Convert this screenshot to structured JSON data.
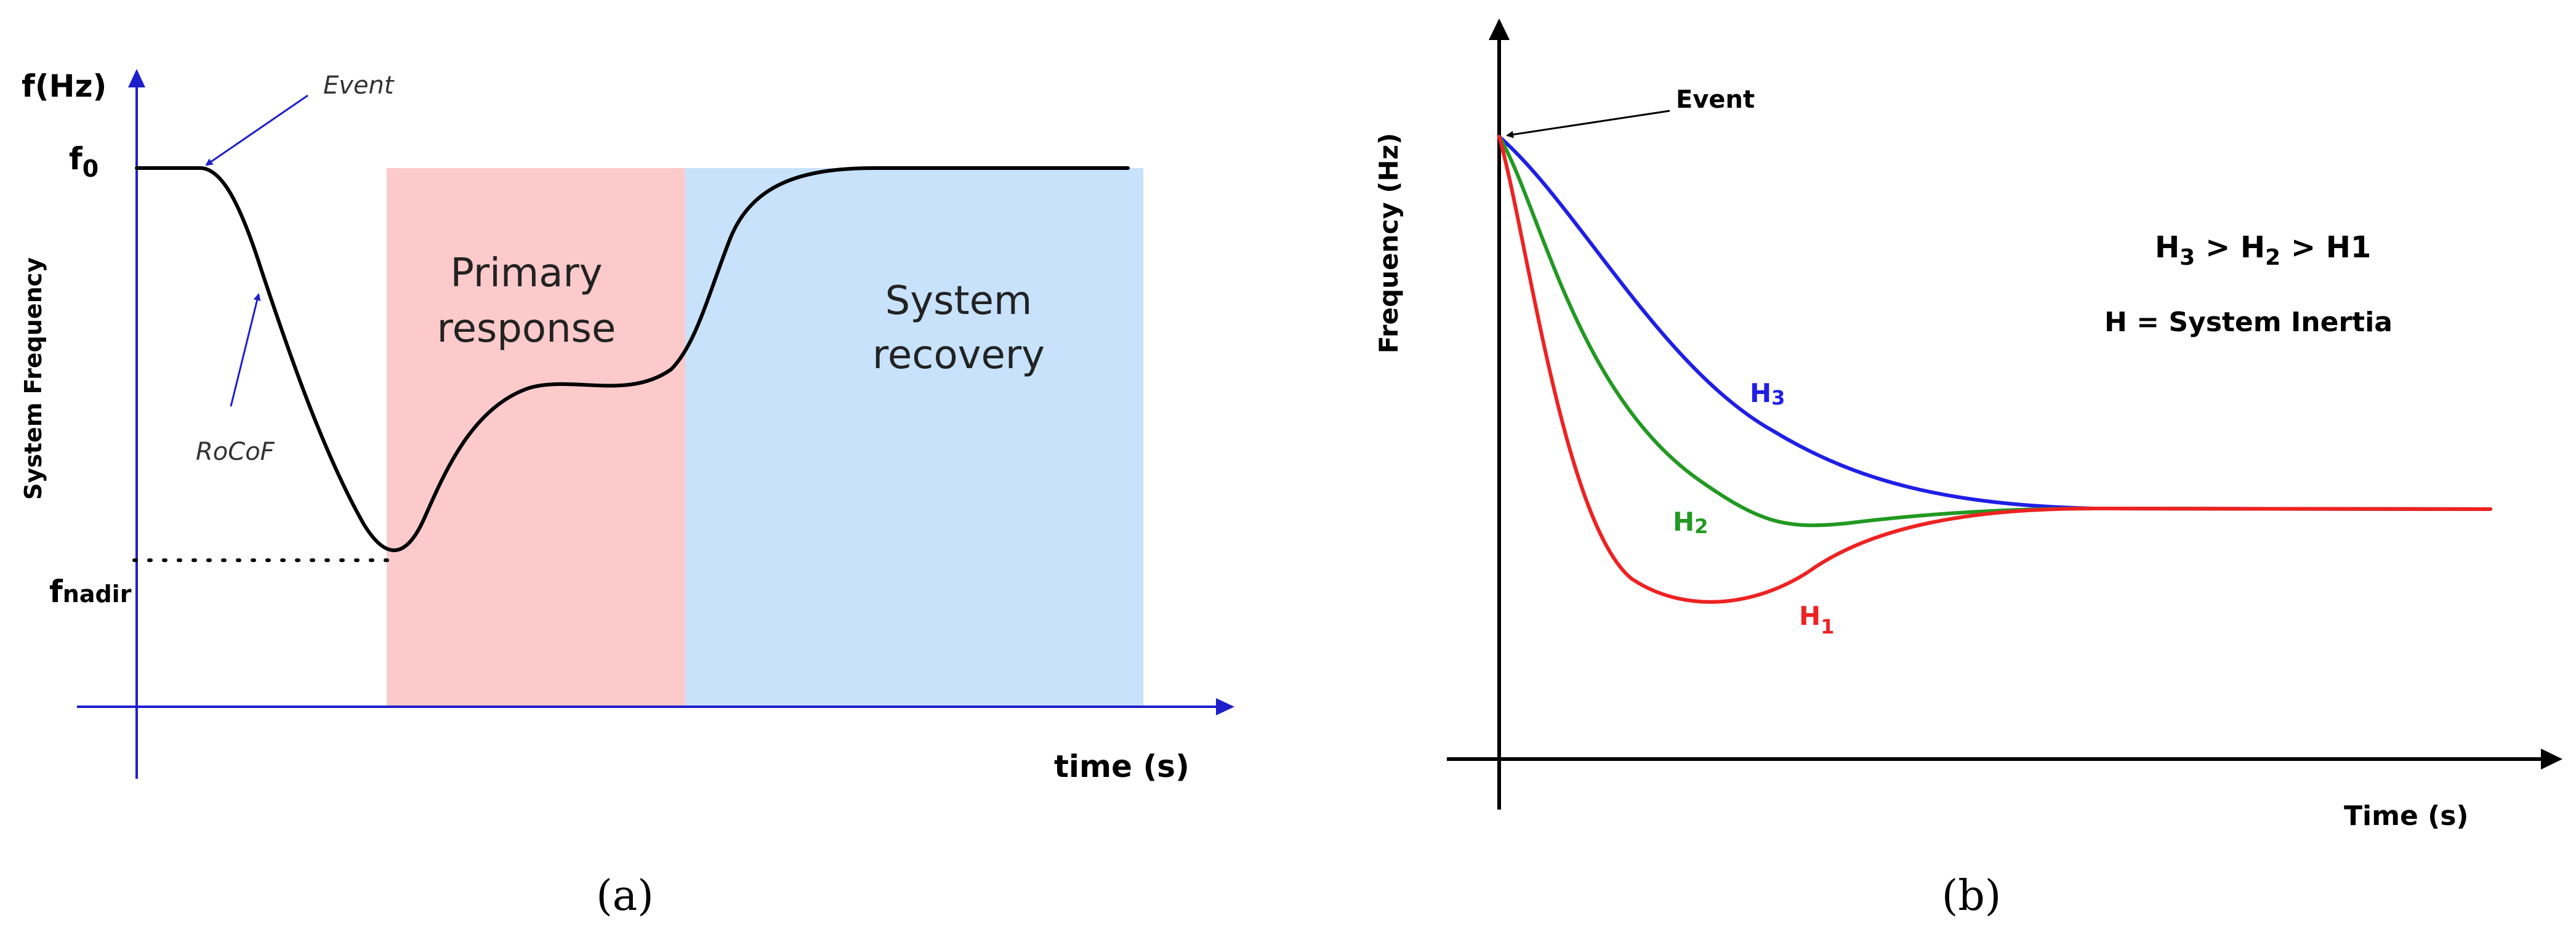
{
  "panel_a": {
    "y_axis_symbol": "f(Hz)",
    "y_axis_label": "System Frequency",
    "x_axis_label": "time (s)",
    "f0_main": "f",
    "f0_sub": "0",
    "nadir_main": "f",
    "nadir_sub": "nadir",
    "event_label": "Event",
    "rocof_label": "RoCoF",
    "primary_line1": "Primary",
    "primary_line2": "response",
    "recovery_line1": "System",
    "recovery_line2": "recovery",
    "caption": "(a)",
    "colors": {
      "axis": "#1f1fcc",
      "curve": "#000000",
      "primary_band": "#fccaca",
      "recovery_band": "#c7e2fa",
      "annotation": "#1f1fcc"
    }
  },
  "panel_b": {
    "y_axis_label": "Frequency (Hz)",
    "x_axis_label": "Time (s)",
    "event_label": "Event",
    "relation": {
      "h3_main": "H",
      "h3_sub": "3",
      "gt1": " > ",
      "h2_main": "H",
      "h2_sub": "2",
      "gt2": " > ",
      "h1_text": "H1"
    },
    "definition": "H = System Inertia",
    "curves": [
      {
        "label_main": "H",
        "label_sub": "3",
        "color": "#1f1fe6"
      },
      {
        "label_main": "H",
        "label_sub": "2",
        "color": "#229922"
      },
      {
        "label_main": "H",
        "label_sub": "1",
        "color": "#ee2222"
      }
    ],
    "caption": "(b)",
    "colors": {
      "axis": "#000000"
    }
  }
}
